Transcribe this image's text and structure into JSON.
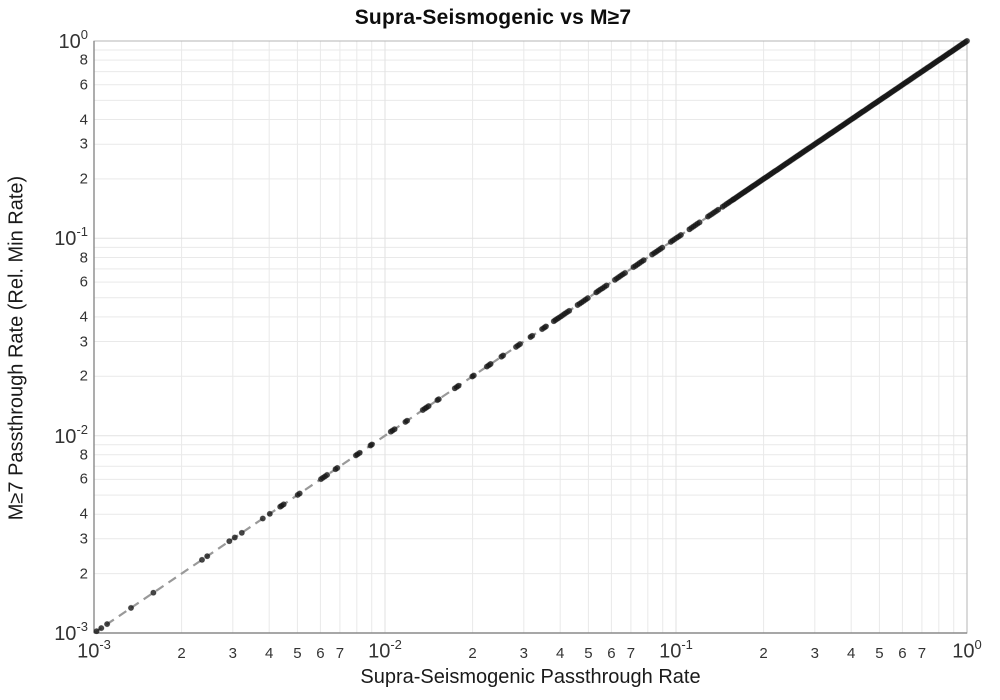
{
  "chart_data": {
    "type": "scatter",
    "title": "Supra-Seismogenic vs M≥7",
    "xlabel": "Supra-Seismogenic Passthrough Rate",
    "ylabel": "M≥7 Passthrough Rate (Rel. Min Rate)",
    "x_scale": "log",
    "y_scale": "log",
    "xlim": [
      0.001,
      1
    ],
    "ylim": [
      0.001,
      1
    ],
    "grid": true,
    "legend": "none",
    "x_ticks": {
      "decade_exponents": [
        -3,
        -2,
        -1,
        0
      ],
      "minor_labeled": [
        2,
        3,
        4,
        5,
        6,
        7
      ]
    },
    "y_ticks": {
      "decade_exponents": [
        0,
        -1,
        -2,
        -3
      ],
      "minor_labeled": [
        8,
        6,
        4,
        3,
        2
      ]
    },
    "series": [
      {
        "name": "reference-line",
        "type": "line",
        "style": "dashed",
        "color": "#999999",
        "width": 2.2,
        "x": [
          0.001,
          1
        ],
        "y": [
          0.001,
          1
        ]
      },
      {
        "name": "passthrough-points",
        "type": "scatter",
        "y_rule": "y = x",
        "marker_color": "rgba(28,28,28,0.82)",
        "marker_outline": "rgba(0,0,0,0.30)",
        "marker_radius_px": 2.7,
        "points_log10": [
          -2.991,
          -2.975,
          -2.955,
          -2.873,
          -2.796,
          -2.629,
          -2.611,
          -2.535,
          -2.516,
          -2.492,
          -2.42,
          -2.396,
          -2.36,
          -2.355,
          -2.348,
          -2.3,
          -2.293,
          -2.22,
          -2.213,
          -2.206,
          -2.199,
          -2.17,
          -2.164,
          -2.1,
          -2.094,
          -2.087,
          -2.05,
          -2.045,
          -1.98,
          -1.974,
          -1.967,
          -1.93,
          -1.924,
          -1.87,
          -1.863,
          -1.857,
          -1.85,
          -1.82,
          -1.815,
          -1.76,
          -1.753,
          -1.747,
          -1.7,
          -1.695,
          -1.65,
          -1.643,
          -1.637,
          -1.6,
          -1.594,
          -1.55,
          -1.543,
          -1.536,
          -1.5,
          -1.494,
          -1.46,
          -1.453,
          -1.447,
          -1.42,
          -1.414,
          -1.408,
          -1.402,
          -1.395,
          -1.388,
          -1.381,
          -1.374,
          -1.367,
          -1.338,
          -1.331,
          -1.324,
          -1.317,
          -1.31,
          -1.303,
          -1.274,
          -1.267,
          -1.26,
          -1.253,
          -1.246,
          -1.239,
          -1.21,
          -1.203,
          -1.196,
          -1.189,
          -1.182,
          -1.175,
          -1.146,
          -1.139,
          -1.132,
          -1.125,
          -1.118,
          -1.111,
          -1.082,
          -1.075,
          -1.068,
          -1.061,
          -1.054,
          -1.047,
          -1.018,
          -1.011,
          -1.004,
          -0.997,
          -0.99,
          -0.983,
          -0.954,
          -0.947,
          -0.94,
          -0.933,
          -0.926,
          -0.919,
          -0.89,
          -0.883,
          -0.876,
          -0.869,
          -0.862,
          -0.855,
          -0.84,
          -0.833,
          -0.826,
          -0.82,
          -0.814,
          -0.808,
          -0.803
        ],
        "dense_run_log10": {
          "from": -0.8,
          "to": 0,
          "step": 0.005
        }
      }
    ]
  },
  "colors": {
    "background": "#ffffff",
    "grid_minor": "#e9e9e9",
    "grid_major": "#e2e2e2",
    "axis_line": "#8a8a8a",
    "plot_border": "#b5b5b5",
    "tick_text": "#333333",
    "title_text": "#0d0d0d"
  }
}
